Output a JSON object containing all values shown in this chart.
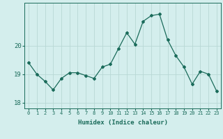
{
  "x": [
    0,
    1,
    2,
    3,
    4,
    5,
    6,
    7,
    8,
    9,
    10,
    11,
    12,
    13,
    14,
    15,
    16,
    17,
    18,
    19,
    20,
    21,
    22,
    23
  ],
  "y": [
    19.4,
    19.0,
    18.75,
    18.45,
    18.85,
    19.05,
    19.05,
    18.95,
    18.85,
    19.25,
    19.35,
    19.9,
    20.45,
    20.05,
    20.85,
    21.05,
    21.1,
    20.2,
    19.65,
    19.25,
    18.65,
    19.1,
    19.0,
    18.4
  ],
  "xlabel": "Humidex (Indice chaleur)",
  "ylim": [
    17.8,
    21.5
  ],
  "xlim": [
    -0.5,
    23.5
  ],
  "yticks": [
    18,
    19,
    20
  ],
  "xticks": [
    0,
    1,
    2,
    3,
    4,
    5,
    6,
    7,
    8,
    9,
    10,
    11,
    12,
    13,
    14,
    15,
    16,
    17,
    18,
    19,
    20,
    21,
    22,
    23
  ],
  "line_color": "#1a6b5a",
  "marker": "D",
  "marker_size": 2.0,
  "bg_color": "#d4eeed",
  "grid_color": "#b8d8d5",
  "tick_color": "#1a6b5a",
  "label_color": "#1a6b5a",
  "spine_color": "#1a6b5a"
}
